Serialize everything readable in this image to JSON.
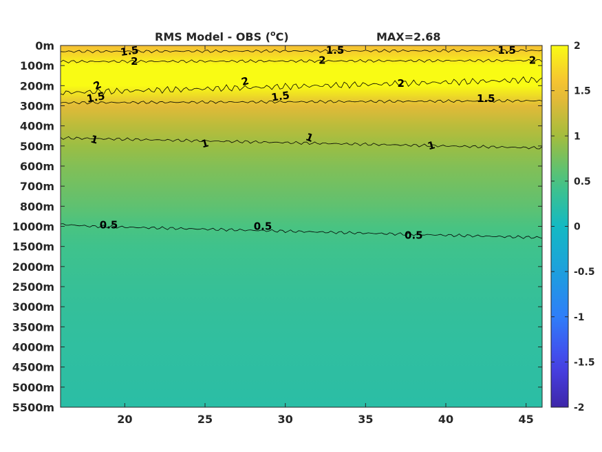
{
  "chart_data": {
    "type": "heatmap",
    "title": "RMS Model - OBS (",
    "title_unit": "o",
    "title_unit_tail": "C)",
    "max_label": "MAX=2.68",
    "xlabel": "",
    "ylabel": "",
    "xlim": [
      16,
      46
    ],
    "x_ticks": [
      20,
      25,
      30,
      35,
      40,
      45
    ],
    "x_tick_labels": [
      "20",
      "25",
      "30",
      "35",
      "40",
      "45"
    ],
    "y_tick_labels": [
      "0m",
      "100m",
      "200m",
      "300m",
      "400m",
      "500m",
      "600m",
      "700m",
      "800m",
      "1000m",
      "1500m",
      "2000m",
      "2500m",
      "3000m",
      "3500m",
      "4000m",
      "4500m",
      "5000m",
      "5500m"
    ],
    "y_scale": "piecewise depth (100 m steps to 800 m, then 1000 m, then 500 m steps)",
    "colorbar": {
      "range": [
        -2,
        2
      ],
      "ticks": [
        2,
        1.5,
        1,
        0.5,
        0,
        -0.5,
        -1,
        -1.5,
        -2
      ],
      "tick_labels": [
        "2",
        "1.5",
        "1",
        "0.5",
        "0",
        "-0.5",
        "-1",
        "-1.5",
        "-2"
      ],
      "colormap": "parula"
    },
    "depth_profile": [
      {
        "depth": 0,
        "value": 1.55
      },
      {
        "depth": 50,
        "value": 1.75
      },
      {
        "depth": 100,
        "value": 2.2
      },
      {
        "depth": 200,
        "value": 2.0
      },
      {
        "depth": 300,
        "value": 1.4
      },
      {
        "depth": 400,
        "value": 1.15
      },
      {
        "depth": 500,
        "value": 0.95
      },
      {
        "depth": 600,
        "value": 0.82
      },
      {
        "depth": 700,
        "value": 0.72
      },
      {
        "depth": 800,
        "value": 0.62
      },
      {
        "depth": 1000,
        "value": 0.5
      },
      {
        "depth": 1500,
        "value": 0.42
      },
      {
        "depth": 2000,
        "value": 0.38
      },
      {
        "depth": 2500,
        "value": 0.34
      },
      {
        "depth": 3000,
        "value": 0.31
      },
      {
        "depth": 3500,
        "value": 0.29
      },
      {
        "depth": 4000,
        "value": 0.27
      },
      {
        "depth": 5000,
        "value": 0.24
      },
      {
        "depth": 5500,
        "value": 0.22
      }
    ],
    "contours": [
      {
        "level": 1.5,
        "label": "1.5",
        "depth_left": 30,
        "depth_right": 25
      },
      {
        "level": 2,
        "label": "2",
        "depth_left": 80,
        "depth_right": 75
      },
      {
        "level": 2,
        "label": "2",
        "depth_left": 235,
        "depth_right": 170
      },
      {
        "level": 1.5,
        "label": "1.5",
        "depth_left": 285,
        "depth_right": 275
      },
      {
        "level": 1,
        "label": "1",
        "depth_left": 460,
        "depth_right": 510
      },
      {
        "level": 0.5,
        "label": "0.5",
        "depth_left": 980,
        "depth_right": 1280
      }
    ],
    "contour_labels": [
      {
        "text": "1.5",
        "x": 20.3,
        "depth": 30,
        "angle": -8
      },
      {
        "text": "1.5",
        "x": 33.1,
        "depth": 25,
        "angle": 0
      },
      {
        "text": "1.5",
        "x": 43.8,
        "depth": 25,
        "angle": 0
      },
      {
        "text": "2",
        "x": 20.6,
        "depth": 80,
        "angle": 0
      },
      {
        "text": "2",
        "x": 32.3,
        "depth": 75,
        "angle": 0
      },
      {
        "text": "2",
        "x": 45.4,
        "depth": 75,
        "angle": 0
      },
      {
        "text": "2",
        "x": 18.3,
        "depth": 200,
        "angle": -25
      },
      {
        "text": "2",
        "x": 27.5,
        "depth": 180,
        "angle": -15
      },
      {
        "text": "2",
        "x": 37.2,
        "depth": 190,
        "angle": 0
      },
      {
        "text": "1.5",
        "x": 18.2,
        "depth": 260,
        "angle": -10
      },
      {
        "text": "1.5",
        "x": 29.7,
        "depth": 255,
        "angle": -8
      },
      {
        "text": "1.5",
        "x": 42.5,
        "depth": 265,
        "angle": 0
      },
      {
        "text": "1",
        "x": 18.1,
        "depth": 470,
        "angle": 15
      },
      {
        "text": "1",
        "x": 25.0,
        "depth": 490,
        "angle": -15
      },
      {
        "text": "1",
        "x": 31.5,
        "depth": 460,
        "angle": 20
      },
      {
        "text": "1",
        "x": 39.1,
        "depth": 500,
        "angle": -15
      },
      {
        "text": "0.5",
        "x": 19.0,
        "depth": 990,
        "angle": 0
      },
      {
        "text": "0.5",
        "x": 28.6,
        "depth": 1010,
        "angle": 0
      },
      {
        "text": "0.5",
        "x": 38.0,
        "depth": 1230,
        "angle": 0
      }
    ]
  }
}
